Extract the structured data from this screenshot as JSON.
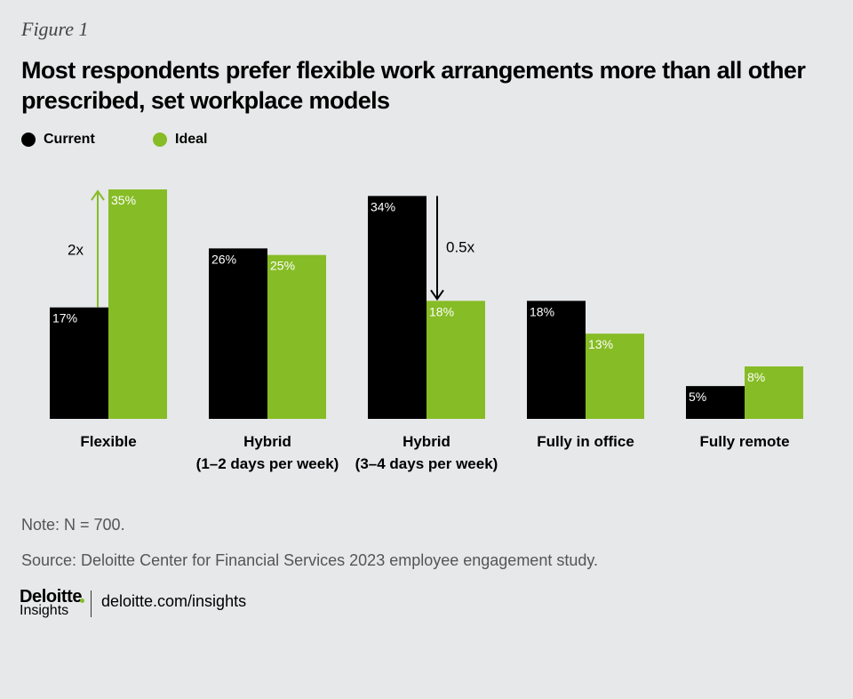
{
  "figure_label": "Figure 1",
  "title": "Most respondents prefer flexible work arrangements more than all other prescribed, set workplace models",
  "legend": [
    {
      "label": "Current",
      "color": "#000000"
    },
    {
      "label": "Ideal",
      "color": "#86bc25"
    }
  ],
  "chart_data": {
    "type": "bar",
    "categories": [
      [
        "Flexible"
      ],
      [
        "Hybrid",
        "(1–2 days per week)"
      ],
      [
        "Hybrid",
        "(3–4 days per week)"
      ],
      [
        "Fully in office"
      ],
      [
        "Fully remote"
      ]
    ],
    "series": [
      {
        "name": "Current",
        "values": [
          17,
          26,
          34,
          18,
          5
        ],
        "labels": [
          "17%",
          "26%",
          "34%",
          "18%",
          "5%"
        ],
        "color": "#000000"
      },
      {
        "name": "Ideal",
        "values": [
          35,
          25,
          18,
          13,
          8
        ],
        "labels": [
          "35%",
          "25%",
          "18%",
          "13%",
          "8%"
        ],
        "color": "#86bc25"
      }
    ],
    "ylim": [
      0,
      35
    ],
    "annotations": [
      {
        "text": "2x",
        "category_index": 0,
        "direction": "up",
        "color": "#86bc25"
      },
      {
        "text": "0.5x",
        "category_index": 2,
        "direction": "down",
        "color": "#000000"
      }
    ]
  },
  "note": "Note: N = 700.",
  "source": "Source: Deloitte Center for Financial Services 2023 employee engagement study.",
  "footer": {
    "logo_word": "Deloitte",
    "logo_sub": "Insights",
    "logo_dot_color": "#86bc25",
    "url": "deloitte.com/insights"
  }
}
